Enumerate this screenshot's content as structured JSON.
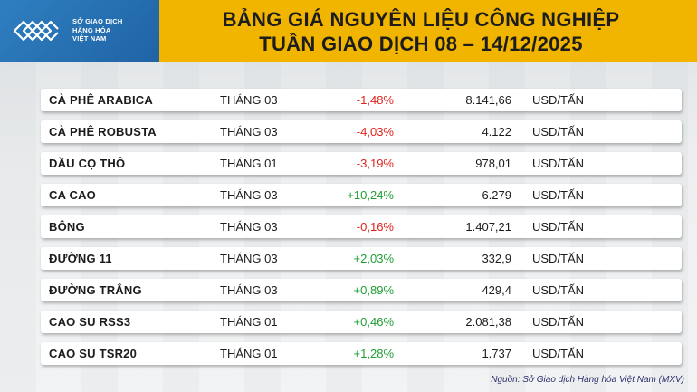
{
  "logo": {
    "line1": "SỞ GIAO DỊCH",
    "line2": "HÀNG HÓA",
    "line3": "VIỆT NAM"
  },
  "title": {
    "line1": "BẢNG GIÁ NGUYÊN LIỆU CÔNG NGHIỆP",
    "line2": "TUẦN GIAO DỊCH 08 – 14/12/2025"
  },
  "colors": {
    "header_bg": "#f1b500",
    "logo_bg": "#2f7fc0",
    "negative": "#e0221b",
    "positive": "#1f9e34"
  },
  "rows": [
    {
      "name": "CÀ PHÊ ARABICA",
      "month": "THÁNG 03",
      "change": "-1,48%",
      "price": "8.141,66",
      "unit": "USD/TẤN",
      "direction": "down"
    },
    {
      "name": "CÀ PHÊ ROBUSTA",
      "month": "THÁNG 03",
      "change": "-4,03%",
      "price": "4.122",
      "unit": "USD/TẤN",
      "direction": "down"
    },
    {
      "name": "DẦU CỌ THÔ",
      "month": "THÁNG 01",
      "change": "-3,19%",
      "price": "978,01",
      "unit": "USD/TẤN",
      "direction": "down"
    },
    {
      "name": "CA CAO",
      "month": "THÁNG 03",
      "change": "+10,24%",
      "price": "6.279",
      "unit": "USD/TẤN",
      "direction": "up"
    },
    {
      "name": "BÔNG",
      "month": "THÁNG 03",
      "change": "-0,16%",
      "price": "1.407,21",
      "unit": "USD/TẤN",
      "direction": "down"
    },
    {
      "name": "ĐƯỜNG 11",
      "month": "THÁNG 03",
      "change": "+2,03%",
      "price": "332,9",
      "unit": "USD/TẤN",
      "direction": "up"
    },
    {
      "name": "ĐƯỜNG TRẮNG",
      "month": "THÁNG 03",
      "change": "+0,89%",
      "price": "429,4",
      "unit": "USD/TẤN",
      "direction": "up"
    },
    {
      "name": "CAO SU RSS3",
      "month": "THÁNG 01",
      "change": "+0,46%",
      "price": "2.081,38",
      "unit": "USD/TẤN",
      "direction": "up"
    },
    {
      "name": "CAO SU TSR20",
      "month": "THÁNG 01",
      "change": "+1,28%",
      "price": "1.737",
      "unit": "USD/TẤN",
      "direction": "up"
    }
  ],
  "source": "Nguồn: Sở Giao dịch Hàng hóa Việt Nam (MXV)"
}
